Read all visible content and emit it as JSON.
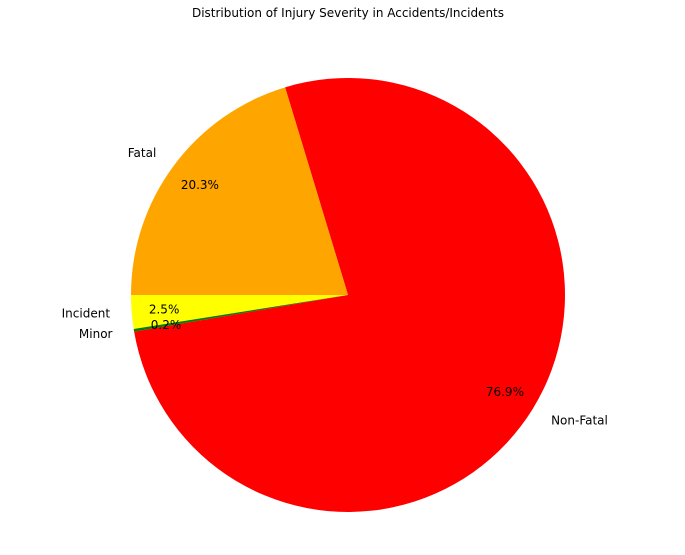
{
  "chart_data": {
    "type": "pie",
    "title": "Distribution of Injury Severity in Accidents/Incidents",
    "start_angle_deg": 180,
    "slices": [
      {
        "label": "Incident",
        "value": 2.5,
        "pct_label": "2.5%",
        "color": "#ffff00"
      },
      {
        "label": "Minor",
        "value": 0.2,
        "pct_label": "0.2%",
        "color": "#008000"
      },
      {
        "label": "Non-Fatal",
        "value": 76.9,
        "pct_label": "76.9%",
        "color": "#ff0000"
      },
      {
        "label": "Fatal",
        "value": 20.3,
        "pct_label": "20.3%",
        "color": "#ffa500"
      }
    ]
  }
}
